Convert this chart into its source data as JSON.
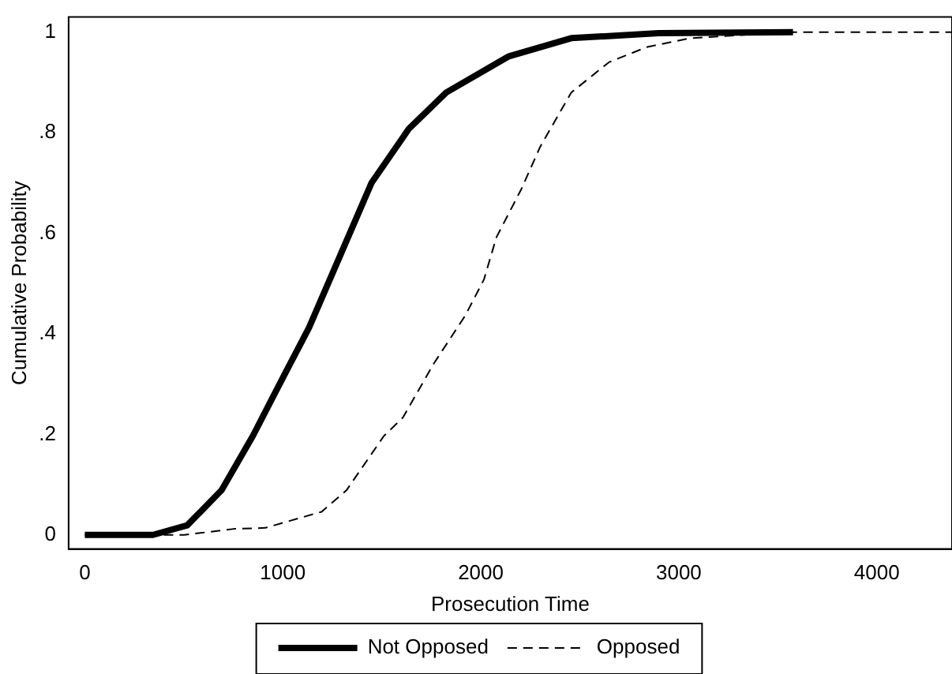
{
  "chart_data": {
    "type": "line",
    "xlabel": "Prosecution Time",
    "ylabel": "Cumulative Probability",
    "xlim": [
      -82,
      4380
    ],
    "ylim": [
      -0.028,
      1.03
    ],
    "xticks": [
      0,
      1000,
      2000,
      3000,
      4000
    ],
    "yticks": [
      0,
      {
        "value": 0.2,
        "label": ".2"
      },
      {
        "value": 0.4,
        "label": ".4"
      },
      {
        "value": 0.6,
        "label": ".6"
      },
      {
        "value": 0.8,
        "label": ".8"
      },
      1
    ],
    "grid": false,
    "legend": "bottom",
    "marker": "none",
    "series": [
      {
        "name": "Not Opposed",
        "color": "#000000",
        "line_style": "solid",
        "x": [
          0,
          344,
          517,
          691,
          849,
          1006,
          1132,
          1290,
          1448,
          1637,
          1826,
          2142,
          2457,
          2899,
          3577
        ],
        "values": [
          0,
          0,
          0.019,
          0.089,
          0.197,
          0.317,
          0.412,
          0.556,
          0.7,
          0.808,
          0.88,
          0.952,
          0.988,
          0.998,
          1
        ]
      },
      {
        "name": "Opposed",
        "color": "#000000",
        "line_style": "dashed",
        "x": [
          0,
          502,
          754,
          912,
          1196,
          1322,
          1511,
          1606,
          1763,
          1921,
          2016,
          2079,
          2205,
          2300,
          2457,
          2647,
          2836,
          3057,
          3561,
          4380
        ],
        "values": [
          0,
          0,
          0.012,
          0.014,
          0.046,
          0.089,
          0.197,
          0.233,
          0.341,
          0.436,
          0.508,
          0.592,
          0.688,
          0.772,
          0.88,
          0.94,
          0.97,
          0.988,
          1,
          1
        ]
      }
    ]
  }
}
